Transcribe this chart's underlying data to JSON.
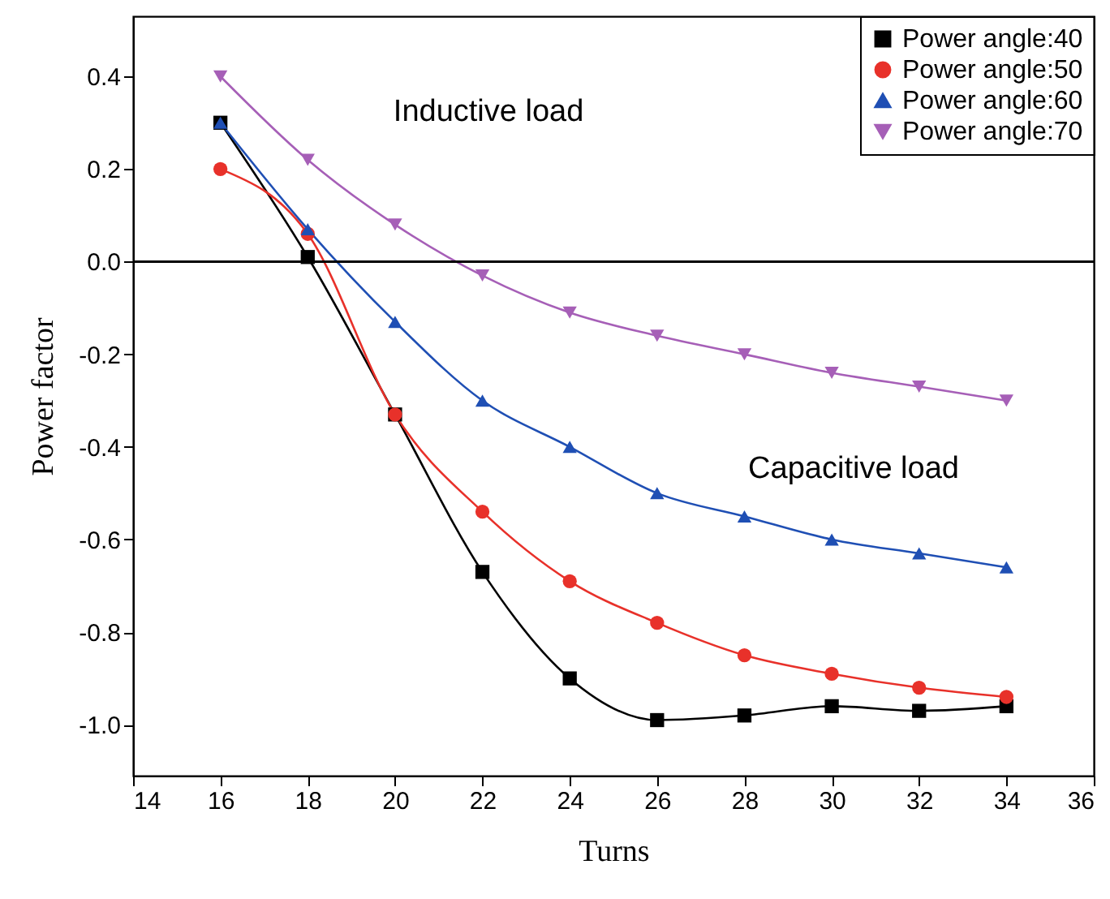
{
  "chart_data": {
    "type": "line",
    "xlabel": "Turns",
    "ylabel": "Power factor",
    "x": [
      16,
      18,
      20,
      22,
      24,
      26,
      28,
      30,
      32,
      34
    ],
    "series": [
      {
        "name": "Power angle:40",
        "color": "#000000",
        "marker": "square",
        "values": [
          0.3,
          0.01,
          -0.33,
          -0.67,
          -0.9,
          -0.99,
          -0.98,
          -0.96,
          -0.97,
          -0.96
        ]
      },
      {
        "name": "Power angle:50",
        "color": "#e8312a",
        "marker": "circle",
        "values": [
          0.2,
          0.06,
          -0.33,
          -0.54,
          -0.69,
          -0.78,
          -0.85,
          -0.89,
          -0.92,
          -0.94
        ]
      },
      {
        "name": "Power angle:60",
        "color": "#1f4fb4",
        "marker": "triangle",
        "values": [
          0.3,
          0.07,
          -0.13,
          -0.3,
          -0.4,
          -0.5,
          -0.55,
          -0.6,
          -0.63,
          -0.66
        ]
      },
      {
        "name": "Power angle:70",
        "color": "#a65fb7",
        "marker": "triangle-down",
        "values": [
          0.4,
          0.22,
          0.08,
          -0.03,
          -0.11,
          -0.16,
          -0.2,
          -0.24,
          -0.27,
          -0.3
        ]
      }
    ],
    "xlim": [
      14,
      36
    ],
    "xticks": [
      14,
      16,
      18,
      20,
      22,
      24,
      26,
      28,
      30,
      32,
      34,
      36
    ],
    "ylim": [
      -1.11,
      0.53
    ],
    "yticks": [
      {
        "value": -1.0,
        "label": "-1.0"
      },
      {
        "value": -0.8,
        "label": "-0.8"
      },
      {
        "value": -0.6,
        "label": "-0.6"
      },
      {
        "value": -0.4,
        "label": "-0.4"
      },
      {
        "value": -0.2,
        "label": "-0.2"
      },
      {
        "value": 0.0,
        "label": "0.0"
      },
      {
        "value": 0.2,
        "label": "0.2"
      },
      {
        "value": 0.4,
        "label": "0.4"
      }
    ],
    "ref_lines": [
      {
        "axis": "y",
        "value": 0,
        "color": "#000000"
      }
    ],
    "annotations": [
      "Inductive load",
      "Capacitive load"
    ],
    "legend": "top right",
    "grid": false,
    "line_style": "solid"
  }
}
